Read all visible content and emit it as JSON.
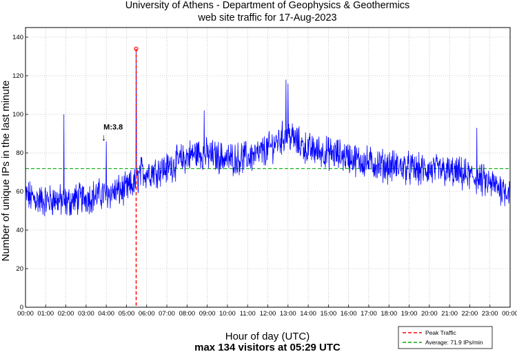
{
  "chart_data": {
    "type": "line",
    "title": "University of Athens - Department of Geophysics & Geothermics",
    "subtitle": "web site traffic for 17-Aug-2023",
    "xlabel": "Hour of day (UTC)",
    "ylabel": "Number of unique IPs in the last minute",
    "summary": "max 134 visitors at 05:29 UTC",
    "xlim": [
      0,
      24
    ],
    "ylim": [
      0,
      145
    ],
    "y_ticks": [
      0,
      20,
      40,
      60,
      80,
      100,
      120,
      140
    ],
    "x_tick_labels": [
      "00:00",
      "01:00",
      "02:00",
      "03:00",
      "04:00",
      "05:00",
      "06:00",
      "07:00",
      "08:00",
      "09:00",
      "10:00",
      "11:00",
      "12:00",
      "13:00",
      "14:00",
      "15:00",
      "16:00",
      "17:00",
      "18:00",
      "19:00",
      "20:00",
      "21:00",
      "22:00",
      "23:00",
      "00:00"
    ],
    "grid": true,
    "series": [
      {
        "name": "traffic",
        "color": "#0000ff",
        "hours": [
          0,
          0.5,
          1,
          1.5,
          2,
          2.5,
          3,
          3.5,
          4,
          4.5,
          5,
          5.48,
          5.7,
          6,
          6.5,
          7,
          7.5,
          8,
          8.5,
          9,
          9.5,
          10,
          10.5,
          11,
          11.5,
          12,
          12.5,
          13,
          13.5,
          14,
          14.5,
          15,
          15.5,
          16,
          16.5,
          17,
          17.5,
          18,
          18.5,
          19,
          19.5,
          20,
          20.5,
          21,
          21.5,
          22,
          22.5,
          23,
          23.5,
          24
        ],
        "values": [
          58,
          56,
          55,
          56,
          54,
          56,
          57,
          58,
          59,
          60,
          61,
          65,
          70,
          70,
          71,
          72,
          75,
          78,
          80,
          79,
          78,
          77,
          77,
          78,
          79,
          82,
          86,
          90,
          85,
          82,
          81,
          80,
          79,
          78,
          76,
          75,
          74,
          73,
          73,
          72,
          71,
          71,
          71,
          70,
          69,
          68,
          66,
          64,
          62,
          60
        ],
        "spikes": [
          {
            "hour": 1.9,
            "value": 100
          },
          {
            "hour": 4.0,
            "value": 86
          },
          {
            "hour": 5.49,
            "value": 134
          },
          {
            "hour": 8.85,
            "value": 102
          },
          {
            "hour": 12.9,
            "value": 118
          },
          {
            "hour": 13.0,
            "value": 116
          },
          {
            "hour": 22.35,
            "value": 93
          }
        ]
      }
    ],
    "peak": {
      "hour": 5.48,
      "value": 134,
      "color": "#ff0000",
      "label": "Peak Traffic"
    },
    "average": {
      "value": 71.9,
      "color": "#00aa00",
      "label": "Average: 71.9 IPs/min"
    },
    "annotations": [
      {
        "text": "M:3.8",
        "hour": 4.0,
        "value": 86,
        "arrow": "↓"
      }
    ],
    "legend_position": "bottom-right"
  }
}
